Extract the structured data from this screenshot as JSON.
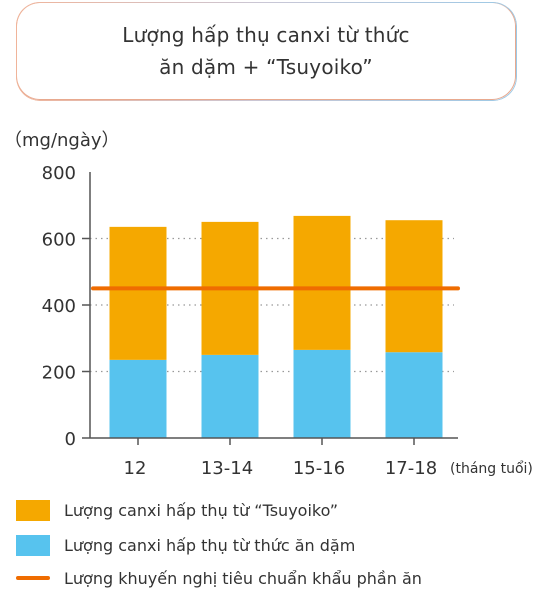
{
  "title_lines": [
    "Lượng hấp thụ canxi từ thức",
    "ăn dặm + “Tsuyoiko”"
  ],
  "colors": {
    "tsuyoiko": "#f5a800",
    "baby_food": "#57c3ee",
    "recommended": "#ef6c00",
    "axis": "#555555",
    "grid": "#999999"
  },
  "chart_data": {
    "type": "bar",
    "stacked": true,
    "title": "Lượng hấp thụ canxi từ thức ăn dặm + “Tsuyoiko”",
    "ylabel": "（mg/ngày）",
    "x_suffix": "(tháng tuổi)",
    "categories": [
      "12",
      "13-14",
      "15-16",
      "17-18"
    ],
    "ylim": [
      0,
      800
    ],
    "yticks": [
      0,
      200,
      400,
      600,
      800
    ],
    "grid": "dotted horizontal",
    "series": [
      {
        "name": "Lượng canxi hấp thụ từ thức ăn dặm",
        "values": [
          235,
          250,
          265,
          258
        ]
      },
      {
        "name": "Lượng canxi hấp thụ từ “Tsuyoiko”",
        "values": [
          400,
          400,
          403,
          397
        ]
      }
    ],
    "reference_line": {
      "name": "Lượng khuyến nghị tiêu chuẩn khẩu phần ăn",
      "value": 450
    },
    "legend_position": "bottom"
  },
  "legend": [
    {
      "label": "Lượng canxi hấp thụ từ “Tsuyoiko”",
      "kind": "box",
      "color_key": "tsuyoiko"
    },
    {
      "label": "Lượng canxi hấp thụ từ thức ăn dặm",
      "kind": "box",
      "color_key": "baby_food"
    },
    {
      "label": "Lượng khuyến nghị tiêu chuẩn khẩu phần ăn",
      "kind": "line",
      "color_key": "recommended"
    }
  ]
}
